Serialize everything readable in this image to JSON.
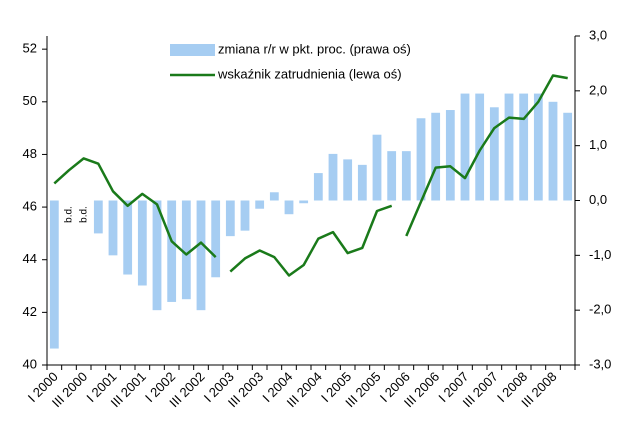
{
  "chart_data": {
    "type": "bar_line",
    "categories": [
      "I 2000",
      null,
      "III 2000",
      null,
      "I 2001",
      null,
      "III 2001",
      null,
      "I 2002",
      null,
      "III 2002",
      null,
      "I 2003",
      null,
      "III 2003",
      null,
      "I 2004",
      null,
      "III 2004",
      null,
      "I 2005",
      null,
      "III 2005",
      null,
      "I 2006",
      null,
      "III 2006",
      null,
      "I 2007",
      null,
      "III 2007",
      null,
      "I 2008",
      null,
      "III 2008",
      null
    ],
    "series": [
      {
        "name": "zmiana r/r w pkt. proc. (prawa oś)",
        "type": "bar",
        "axis": "y2",
        "color": "#a6cdf2",
        "values": [
          -2.7,
          null,
          null,
          -0.6,
          -1.0,
          -1.35,
          -1.55,
          -2.0,
          -1.85,
          -1.8,
          -2.0,
          -1.4,
          -0.65,
          -0.55,
          -0.15,
          0.15,
          -0.25,
          -0.05,
          0.5,
          0.85,
          0.75,
          0.65,
          1.2,
          0.9,
          0.9,
          1.5,
          1.6,
          1.65,
          1.95,
          1.95,
          1.7,
          1.95,
          1.95,
          1.95,
          1.8,
          1.6
        ]
      },
      {
        "name": "wskaźnik zatrudnienia (lewa oś)",
        "type": "line",
        "color": "#1a7a1a",
        "values": [
          46.9,
          47.4,
          47.85,
          47.65,
          46.6,
          46.05,
          46.5,
          46.1,
          44.7,
          44.2,
          44.65,
          44.1,
          null,
          null,
          null,
          null,
          null,
          null,
          null,
          null,
          null,
          null,
          null,
          null,
          null,
          null,
          null,
          null,
          null,
          null,
          null,
          null,
          null,
          null,
          null,
          null
        ]
      },
      {
        "type": "line",
        "color": "#1a7a1a",
        "values": [
          null,
          null,
          null,
          null,
          null,
          null,
          null,
          null,
          null,
          null,
          null,
          null,
          43.55,
          44.05,
          44.35,
          44.1,
          43.4,
          43.8,
          44.8,
          45.05,
          44.25,
          44.45,
          45.85,
          46.05,
          null,
          null,
          null,
          null,
          null,
          null,
          null,
          null,
          null,
          null,
          null,
          null
        ]
      },
      {
        "type": "line",
        "color": "#1a7a1a",
        "values": [
          null,
          null,
          null,
          null,
          null,
          null,
          null,
          null,
          null,
          null,
          null,
          null,
          null,
          null,
          null,
          null,
          null,
          null,
          null,
          null,
          null,
          null,
          null,
          null,
          44.9,
          46.2,
          47.5,
          47.55,
          47.1,
          48.15,
          49.0,
          49.4,
          49.35,
          50.0,
          51.0,
          50.9
        ]
      }
    ],
    "annotations": [
      "b.d.",
      "b.d."
    ],
    "ylim": [
      40,
      52.5
    ],
    "yticks": [
      40,
      42,
      44,
      46,
      48,
      50,
      52
    ],
    "y2lim": [
      -3,
      3
    ],
    "y2ticks": [
      {
        "value": -3,
        "label": "-3,0"
      },
      {
        "value": -2,
        "label": "-2,0"
      },
      {
        "value": -1,
        "label": "-1,0"
      },
      {
        "value": 0,
        "label": "0,0"
      },
      {
        "value": 1,
        "label": "1,0"
      },
      {
        "value": 2,
        "label": "2,0"
      },
      {
        "value": 3,
        "label": "3,0"
      }
    ]
  }
}
